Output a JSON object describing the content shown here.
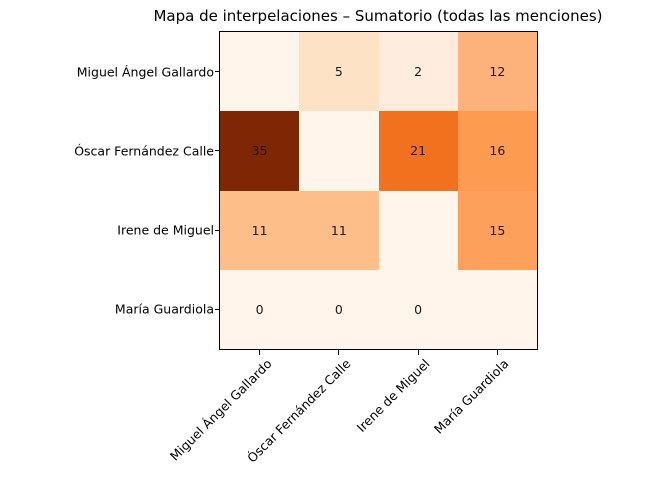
{
  "chart_data": {
    "type": "heatmap",
    "title": "Mapa de interpelaciones – Sumatorio (todas las menciones)",
    "xlabel": "",
    "ylabel": "",
    "colormap": "Oranges",
    "x_categories": [
      "Miguel Ángel Gallardo",
      "Óscar Fernández Calle",
      "Irene de Miguel",
      "María Guardiola"
    ],
    "y_categories": [
      "Miguel Ángel Gallardo",
      "Óscar Fernández Calle",
      "Irene de Miguel",
      "María Guardiola"
    ],
    "values": [
      [
        0,
        5,
        2,
        12
      ],
      [
        35,
        0,
        21,
        16
      ],
      [
        11,
        11,
        0,
        15
      ],
      [
        0,
        0,
        0,
        0
      ]
    ],
    "labels": [
      [
        "",
        "5",
        "2",
        "12"
      ],
      [
        "35",
        "",
        "21",
        "16"
      ],
      [
        "11",
        "11",
        "",
        "15"
      ],
      [
        "0",
        "0",
        "0",
        ""
      ]
    ],
    "colors": [
      [
        "#fff5eb",
        "#fee2c6",
        "#feedde",
        "#fdb27b"
      ],
      [
        "#7f2704",
        "#fff5eb",
        "#f1711f",
        "#fd9b51"
      ],
      [
        "#fdbe8a",
        "#fdbe8a",
        "#fff5eb",
        "#fda05b"
      ],
      [
        "#fff5eb",
        "#fff5eb",
        "#fff5eb",
        "#fff5eb"
      ]
    ],
    "vmin": 0,
    "vmax": 35,
    "grid": false,
    "legend": null
  }
}
